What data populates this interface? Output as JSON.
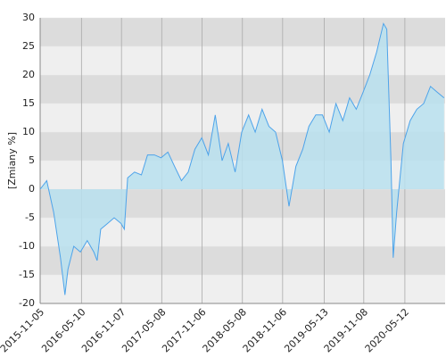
{
  "chart_data": {
    "type": "area",
    "ylabel": "[Zmiany %]",
    "x": [
      "2015-11-05",
      "2015-12-05",
      "2016-01-05",
      "2016-02-05",
      "2016-02-25",
      "2016-03-10",
      "2016-04-05",
      "2016-05-05",
      "2016-06-05",
      "2016-07-05",
      "2016-07-20",
      "2016-08-05",
      "2016-09-05",
      "2016-10-05",
      "2016-11-05",
      "2016-11-20",
      "2016-12-05",
      "2017-01-05",
      "2017-02-05",
      "2017-03-05",
      "2017-04-05",
      "2017-05-05",
      "2017-06-05",
      "2017-07-05",
      "2017-08-05",
      "2017-09-05",
      "2017-10-05",
      "2017-11-05",
      "2017-12-05",
      "2018-01-05",
      "2018-02-05",
      "2018-03-05",
      "2018-04-05",
      "2018-05-05",
      "2018-06-05",
      "2018-07-05",
      "2018-08-05",
      "2018-09-05",
      "2018-10-05",
      "2018-11-05",
      "2018-12-05",
      "2019-01-05",
      "2019-02-05",
      "2019-03-05",
      "2019-04-05",
      "2019-05-05",
      "2019-06-05",
      "2019-07-05",
      "2019-08-05",
      "2019-09-05",
      "2019-10-05",
      "2019-11-05",
      "2019-12-05",
      "2020-01-05",
      "2020-02-05",
      "2020-02-20",
      "2020-03-10",
      "2020-03-20",
      "2020-04-05",
      "2020-05-05",
      "2020-06-05",
      "2020-07-05",
      "2020-08-05",
      "2020-09-05",
      "2020-10-05",
      "2020-11-05"
    ],
    "series": [
      {
        "name": "Zmiany",
        "color": "#4da3ea",
        "fill": "#b9e0ef",
        "values": [
          0,
          1.5,
          -4,
          -12,
          -18.5,
          -14,
          -10,
          -11,
          -9,
          -11,
          -12.5,
          -7,
          -6,
          -5,
          -6,
          -7,
          2,
          3,
          2.5,
          6,
          6,
          5.5,
          6.5,
          4,
          1.5,
          3,
          7,
          9,
          6,
          13,
          5,
          8,
          3,
          10,
          13,
          10,
          14,
          11,
          10,
          5,
          -3,
          4,
          7,
          11,
          13,
          13,
          10,
          15,
          12,
          16,
          14,
          17,
          20,
          24,
          29,
          28,
          5,
          -12,
          -4,
          8,
          12,
          14,
          15,
          18,
          17,
          16
        ]
      }
    ],
    "xlim": [
      "2015-11-05",
      "2020-11-10"
    ],
    "xticks": [
      "2015-11-05",
      "2016-05-10",
      "2016-11-07",
      "2017-05-08",
      "2017-11-06",
      "2018-05-08",
      "2018-11-06",
      "2019-05-13",
      "2019-11-08",
      "2020-05-12"
    ],
    "ylim": [
      -20,
      30
    ],
    "yticks": [
      -20,
      -15,
      -10,
      -5,
      0,
      5,
      10,
      15,
      20,
      25,
      30
    ],
    "grid": true
  }
}
